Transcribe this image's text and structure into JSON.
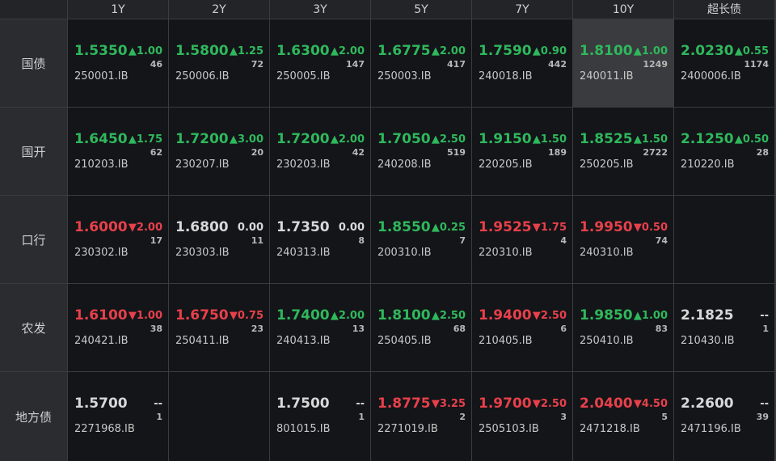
{
  "header": {
    "columns": [
      "1Y",
      "2Y",
      "3Y",
      "5Y",
      "7Y",
      "10Y",
      "超长债"
    ]
  },
  "rows": [
    {
      "label": "国债",
      "cells": [
        {
          "yield": "1.5350",
          "change": "▲1.00",
          "count": 46,
          "code": "250001.IB",
          "color": "#2fb85c"
        },
        {
          "yield": "1.5800",
          "change": "▲1.25",
          "count": 72,
          "code": "250006.IB",
          "color": "#2fb85c"
        },
        {
          "yield": "1.6300",
          "change": "▲2.00",
          "count": 147,
          "code": "250005.IB",
          "color": "#2fb85c"
        },
        {
          "yield": "1.6775",
          "change": "▲2.00",
          "count": 417,
          "code": "250003.IB",
          "color": "#2fb85c"
        },
        {
          "yield": "1.7590",
          "change": "▲0.90",
          "count": 442,
          "code": "240018.IB",
          "color": "#2fb85c"
        },
        {
          "yield": "1.8100",
          "change": "▲1.00",
          "count": 1249,
          "code": "240011.IB",
          "color": "#2fb85c",
          "selected": true
        },
        {
          "yield": "2.0230",
          "change": "▲0.55",
          "count": 1174,
          "code": "2400006.IB",
          "color": "#2fb85c"
        }
      ]
    },
    {
      "label": "国开",
      "cells": [
        {
          "yield": "1.6450",
          "change": "▲1.75",
          "count": 62,
          "code": "210203.IB",
          "color": "#2fb85c"
        },
        {
          "yield": "1.7200",
          "change": "▲3.00",
          "count": 20,
          "code": "230207.IB",
          "color": "#2fb85c"
        },
        {
          "yield": "1.7200",
          "change": "▲2.00",
          "count": 42,
          "code": "230203.IB",
          "color": "#2fb85c"
        },
        {
          "yield": "1.7050",
          "change": "▲2.50",
          "count": 519,
          "code": "240208.IB",
          "color": "#2fb85c"
        },
        {
          "yield": "1.9150",
          "change": "▲1.50",
          "count": 189,
          "code": "220205.IB",
          "color": "#2fb85c"
        },
        {
          "yield": "1.8525",
          "change": "▲1.50",
          "count": 2722,
          "code": "250205.IB",
          "color": "#2fb85c"
        },
        {
          "yield": "2.1250",
          "change": "▲0.50",
          "count": 28,
          "code": "210220.IB",
          "color": "#2fb85c"
        }
      ]
    },
    {
      "label": "口行",
      "cells": [
        {
          "yield": "1.6000",
          "change": "▼2.00",
          "count": 17,
          "code": "230302.IB",
          "color": "#e8404a"
        },
        {
          "yield": "1.6800",
          "change": "0.00",
          "count": 11,
          "code": "230303.IB",
          "color": "#d8d8d8"
        },
        {
          "yield": "1.7350",
          "change": "0.00",
          "count": 8,
          "code": "240313.IB",
          "color": "#d8d8d8"
        },
        {
          "yield": "1.8550",
          "change": "▲0.25",
          "count": 7,
          "code": "200310.IB",
          "color": "#2fb85c"
        },
        {
          "yield": "1.9525",
          "change": "▼1.75",
          "count": 4,
          "code": "220310.IB",
          "color": "#e8404a"
        },
        {
          "yield": "1.9950",
          "change": "▼0.50",
          "count": 74,
          "code": "240310.IB",
          "color": "#e8404a"
        },
        null
      ]
    },
    {
      "label": "农发",
      "cells": [
        {
          "yield": "1.6100",
          "change": "▼1.00",
          "count": 38,
          "code": "240421.IB",
          "color": "#e8404a"
        },
        {
          "yield": "1.6750",
          "change": "▼0.75",
          "count": 23,
          "code": "250411.IB",
          "color": "#e8404a"
        },
        {
          "yield": "1.7400",
          "change": "▲2.00",
          "count": 13,
          "code": "240413.IB",
          "color": "#2fb85c"
        },
        {
          "yield": "1.8100",
          "change": "▲2.50",
          "count": 68,
          "code": "250405.IB",
          "color": "#2fb85c"
        },
        {
          "yield": "1.9400",
          "change": "▼2.50",
          "count": 6,
          "code": "210405.IB",
          "color": "#e8404a"
        },
        {
          "yield": "1.9850",
          "change": "▲1.00",
          "count": 83,
          "code": "250410.IB",
          "color": "#2fb85c"
        },
        {
          "yield": "2.1825",
          "change": "--",
          "count": 1,
          "code": "210430.IB",
          "color": "#d8d8d8"
        }
      ]
    },
    {
      "label": "地方债",
      "cells": [
        {
          "yield": "1.5700",
          "change": "--",
          "count": 1,
          "code": "2271968.IB",
          "color": "#d8d8d8"
        },
        null,
        {
          "yield": "1.7500",
          "change": "--",
          "count": 1,
          "code": "801015.IB",
          "color": "#d8d8d8"
        },
        {
          "yield": "1.8775",
          "change": "▼3.25",
          "count": 2,
          "code": "2271019.IB",
          "color": "#e8404a"
        },
        {
          "yield": "1.9700",
          "change": "▼2.50",
          "count": 3,
          "code": "2505103.IB",
          "color": "#e8404a"
        },
        {
          "yield": "2.0400",
          "change": "▼4.50",
          "count": 5,
          "code": "2471218.IB",
          "color": "#e8404a"
        },
        {
          "yield": "2.2600",
          "change": "--",
          "count": 39,
          "code": "2471196.IB",
          "color": "#d8d8d8"
        }
      ]
    }
  ]
}
